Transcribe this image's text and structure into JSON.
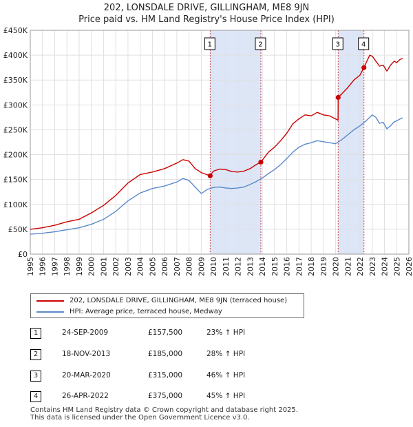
{
  "title": "202, LONSDALE DRIVE, GILLINGHAM, ME8 9JN",
  "subtitle": "Price paid vs. HM Land Registry's House Price Index (HPI)",
  "colors": {
    "property": "#cc0000",
    "hpi": "#5b8ac9",
    "band": "#dde6f7",
    "grid": "#e0e0e0"
  },
  "chart_data": {
    "type": "line",
    "xlim": [
      1995,
      2026
    ],
    "ylim": [
      0,
      450000
    ],
    "yticks": [
      0,
      50000,
      100000,
      150000,
      200000,
      250000,
      300000,
      350000,
      400000,
      450000
    ],
    "ytick_labels": [
      "£0",
      "£50K",
      "£100K",
      "£150K",
      "£200K",
      "£250K",
      "£300K",
      "£350K",
      "£400K",
      "£450K"
    ],
    "xtick_labels": [
      "1995",
      "1996",
      "1997",
      "1998",
      "1999",
      "2000",
      "2001",
      "2002",
      "2003",
      "2004",
      "2005",
      "2006",
      "2007",
      "2008",
      "2009",
      "2010",
      "2011",
      "2012",
      "2013",
      "2014",
      "2015",
      "2016",
      "2017",
      "2018",
      "2019",
      "2020",
      "2021",
      "2022",
      "2023",
      "2024",
      "2025",
      "2026"
    ],
    "shaded_ranges": [
      [
        2009.73,
        2013.88
      ],
      [
        2020.21,
        2022.32
      ]
    ],
    "series": [
      {
        "name": "202, LONSDALE DRIVE, GILLINGHAM, ME8 9JN (terraced house)",
        "x": [
          1995.0,
          1996.0,
          1997.0,
          1998.0,
          1999.0,
          2000.0,
          2001.0,
          2002.0,
          2003.0,
          2004.0,
          2005.0,
          2006.0,
          2007.0,
          2007.5,
          2008.0,
          2008.5,
          2009.0,
          2009.73,
          2010.0,
          2010.5,
          2011.0,
          2011.5,
          2012.0,
          2012.5,
          2013.0,
          2013.5,
          2013.88,
          2014.5,
          2015.0,
          2015.5,
          2016.0,
          2016.5,
          2017.0,
          2017.5,
          2018.0,
          2018.5,
          2019.0,
          2019.5,
          2020.0,
          2020.2,
          2020.21,
          2020.5,
          2021.0,
          2021.5,
          2022.0,
          2022.32,
          2022.6,
          2022.8,
          2023.0,
          2023.3,
          2023.6,
          2023.9,
          2024.2,
          2024.5,
          2024.8,
          2025.0,
          2025.3,
          2025.5
        ],
        "values": [
          50000,
          53000,
          58000,
          65000,
          70000,
          83000,
          98000,
          118000,
          143000,
          160000,
          165000,
          172000,
          183000,
          190000,
          187000,
          172000,
          164000,
          157500,
          167000,
          171000,
          170000,
          166000,
          165000,
          167000,
          172000,
          180000,
          185000,
          205000,
          215000,
          228000,
          243000,
          262000,
          272000,
          280000,
          278000,
          285000,
          280000,
          278000,
          272000,
          269000,
          315000,
          322000,
          335000,
          350000,
          360000,
          375000,
          390000,
          400000,
          398000,
          388000,
          378000,
          380000,
          368000,
          380000,
          388000,
          385000,
          392000,
          393000
        ]
      },
      {
        "name": "HPI: Average price, terraced house, Medway",
        "x": [
          1995.0,
          1996.0,
          1997.0,
          1998.0,
          1999.0,
          2000.0,
          2001.0,
          2002.0,
          2003.0,
          2004.0,
          2005.0,
          2006.0,
          2007.0,
          2007.5,
          2008.0,
          2008.5,
          2009.0,
          2009.5,
          2010.0,
          2010.5,
          2011.0,
          2011.5,
          2012.0,
          2012.5,
          2013.0,
          2013.5,
          2014.0,
          2014.5,
          2015.0,
          2015.5,
          2016.0,
          2016.5,
          2017.0,
          2017.5,
          2018.0,
          2018.5,
          2019.0,
          2019.5,
          2020.0,
          2020.5,
          2021.0,
          2021.5,
          2022.0,
          2022.5,
          2023.0,
          2023.3,
          2023.6,
          2023.9,
          2024.2,
          2024.5,
          2024.8,
          2025.0,
          2025.3,
          2025.5
        ],
        "values": [
          40000,
          42000,
          45000,
          49000,
          53000,
          60000,
          70000,
          86000,
          107000,
          123000,
          132000,
          137000,
          145000,
          152000,
          148000,
          135000,
          122000,
          130000,
          134000,
          135000,
          133000,
          132000,
          133000,
          135000,
          140000,
          146000,
          153000,
          162000,
          170000,
          180000,
          192000,
          205000,
          215000,
          221000,
          224000,
          228000,
          226000,
          224000,
          222000,
          230000,
          240000,
          250000,
          258000,
          268000,
          280000,
          275000,
          263000,
          265000,
          252000,
          258000,
          266000,
          268000,
          272000,
          274000
        ]
      }
    ],
    "sales": [
      {
        "label": "1",
        "x": 2009.73,
        "value": 157500
      },
      {
        "label": "2",
        "x": 2013.88,
        "value": 185000
      },
      {
        "label": "3",
        "x": 2020.21,
        "value": 315000
      },
      {
        "label": "4",
        "x": 2022.32,
        "value": 375000
      }
    ]
  },
  "legend": {
    "property": "202, LONSDALE DRIVE, GILLINGHAM, ME8 9JN (terraced house)",
    "hpi": "HPI: Average price, terraced house, Medway"
  },
  "transactions": [
    {
      "num": "1",
      "date": "24-SEP-2009",
      "price": "£157,500",
      "hpi": "23% ↑ HPI"
    },
    {
      "num": "2",
      "date": "18-NOV-2013",
      "price": "£185,000",
      "hpi": "28% ↑ HPI"
    },
    {
      "num": "3",
      "date": "20-MAR-2020",
      "price": "£315,000",
      "hpi": "46% ↑ HPI"
    },
    {
      "num": "4",
      "date": "26-APR-2022",
      "price": "£375,000",
      "hpi": "45% ↑ HPI"
    }
  ],
  "footer": {
    "line1": "Contains HM Land Registry data © Crown copyright and database right 2025.",
    "line2": "This data is licensed under the Open Government Licence v3.0."
  }
}
